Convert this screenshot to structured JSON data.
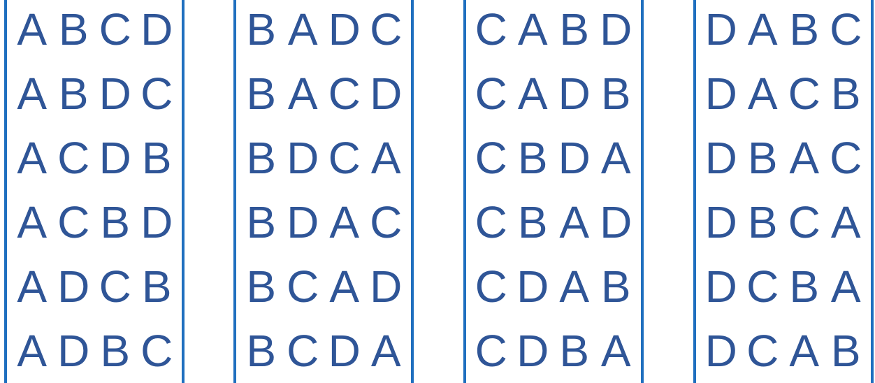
{
  "colors": {
    "border": "#1f6fbf",
    "letter": "#2f5597",
    "background": "#ffffff"
  },
  "columns": [
    {
      "rows": [
        [
          "A",
          "B",
          "C",
          "D"
        ],
        [
          "A",
          "B",
          "D",
          "C"
        ],
        [
          "A",
          "C",
          "D",
          "B"
        ],
        [
          "A",
          "C",
          "B",
          "D"
        ],
        [
          "A",
          "D",
          "C",
          "B"
        ],
        [
          "A",
          "D",
          "B",
          "C"
        ]
      ]
    },
    {
      "rows": [
        [
          "B",
          "A",
          "D",
          "C"
        ],
        [
          "B",
          "A",
          "C",
          "D"
        ],
        [
          "B",
          "D",
          "C",
          "A"
        ],
        [
          "B",
          "D",
          "A",
          "C"
        ],
        [
          "B",
          "C",
          "A",
          "D"
        ],
        [
          "B",
          "C",
          "D",
          "A"
        ]
      ]
    },
    {
      "rows": [
        [
          "C",
          "A",
          "B",
          "D"
        ],
        [
          "C",
          "A",
          "D",
          "B"
        ],
        [
          "C",
          "B",
          "D",
          "A"
        ],
        [
          "C",
          "B",
          "A",
          "D"
        ],
        [
          "C",
          "D",
          "A",
          "B"
        ],
        [
          "C",
          "D",
          "B",
          "A"
        ]
      ]
    },
    {
      "rows": [
        [
          "D",
          "A",
          "B",
          "C"
        ],
        [
          "D",
          "A",
          "C",
          "B"
        ],
        [
          "D",
          "B",
          "A",
          "C"
        ],
        [
          "D",
          "B",
          "C",
          "A"
        ],
        [
          "D",
          "C",
          "B",
          "A"
        ],
        [
          "D",
          "C",
          "A",
          "B"
        ]
      ]
    }
  ]
}
